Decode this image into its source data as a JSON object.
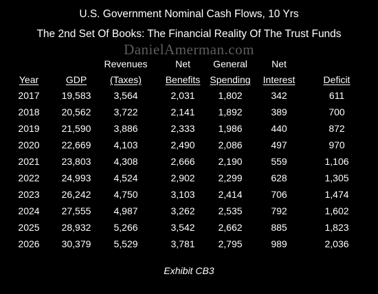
{
  "title": "U.S. Government Nominal Cash Flows, 10 Yrs",
  "subtitle": "The 2nd Set Of Books: The Financial Reality Of The Trust Funds",
  "watermark": "DanielAmerman.com",
  "caption": "Exhibit CB3",
  "colors": {
    "background": "#000000",
    "text": "#ffffff",
    "watermark": "#5e5e5e"
  },
  "chart_data": {
    "type": "table",
    "title": "U.S. Government Nominal Cash Flows, 10 Yrs",
    "subtitle": "The 2nd Set Of Books: The Financial Reality Of The Trust Funds",
    "columns": [
      {
        "top": "",
        "bottom": "Year"
      },
      {
        "top": "",
        "bottom": "GDP"
      },
      {
        "top": "Revenues",
        "bottom": "(Taxes)"
      },
      {
        "top": "Net",
        "bottom": "Benefits"
      },
      {
        "top": "General",
        "bottom": "Spending"
      },
      {
        "top": "Net",
        "bottom": "Interest"
      },
      {
        "top": "",
        "bottom": "Deficit"
      }
    ],
    "rows": [
      [
        "2017",
        "19,583",
        "3,564",
        "2,031",
        "1,802",
        "342",
        "611"
      ],
      [
        "2018",
        "20,562",
        "3,722",
        "2,141",
        "1,892",
        "389",
        "700"
      ],
      [
        "2019",
        "21,590",
        "3,886",
        "2,333",
        "1,986",
        "440",
        "872"
      ],
      [
        "2020",
        "22,669",
        "4,103",
        "2,490",
        "2,086",
        "497",
        "970"
      ],
      [
        "2021",
        "23,803",
        "4,308",
        "2,666",
        "2,190",
        "559",
        "1,106"
      ],
      [
        "2022",
        "24,993",
        "4,524",
        "2,902",
        "2,299",
        "628",
        "1,305"
      ],
      [
        "2023",
        "26,242",
        "4,750",
        "3,103",
        "2,414",
        "706",
        "1,474"
      ],
      [
        "2024",
        "27,555",
        "4,987",
        "3,262",
        "2,535",
        "792",
        "1,602"
      ],
      [
        "2025",
        "28,932",
        "5,266",
        "3,542",
        "2,662",
        "885",
        "1,823"
      ],
      [
        "2026",
        "30,379",
        "5,529",
        "3,781",
        "2,795",
        "989",
        "2,036"
      ]
    ]
  }
}
